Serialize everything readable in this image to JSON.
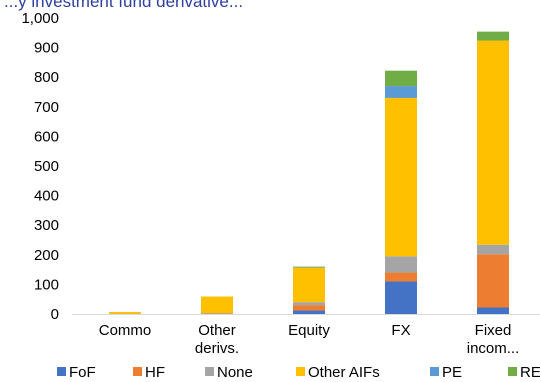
{
  "chart_data": {
    "type": "bar",
    "stacked": true,
    "title": "...y investment fund derivative...",
    "xlabel": "",
    "ylabel": "",
    "ylim": [
      0,
      1000
    ],
    "yticks": [
      "0",
      "100",
      "200",
      "300",
      "400",
      "500",
      "600",
      "700",
      "800",
      "900",
      "1,000"
    ],
    "grid": false,
    "legend_position": "bottom",
    "categories": [
      [
        "Commo"
      ],
      [
        "Other",
        "derivs."
      ],
      [
        "Equity"
      ],
      [
        "FX"
      ],
      [
        "Fixed",
        "incom..."
      ]
    ],
    "series": [
      {
        "name": "FoF",
        "color": "#4472c4",
        "values": [
          0,
          1,
          12,
          110,
          22
        ]
      },
      {
        "name": "HF",
        "color": "#ed7d31",
        "values": [
          1,
          1,
          18,
          30,
          180
        ]
      },
      {
        "name": "None",
        "color": "#a5a5a5",
        "values": [
          0,
          1,
          10,
          55,
          32
        ]
      },
      {
        "name": "Other AIFs",
        "color": "#ffc000",
        "values": [
          6,
          56,
          118,
          535,
          690
        ]
      },
      {
        "name": "PE",
        "color": "#5b9bd5",
        "values": [
          0,
          0,
          1,
          40,
          0
        ]
      },
      {
        "name": "RE",
        "color": "#70ad47",
        "values": [
          0,
          0,
          1,
          52,
          30
        ]
      }
    ]
  }
}
